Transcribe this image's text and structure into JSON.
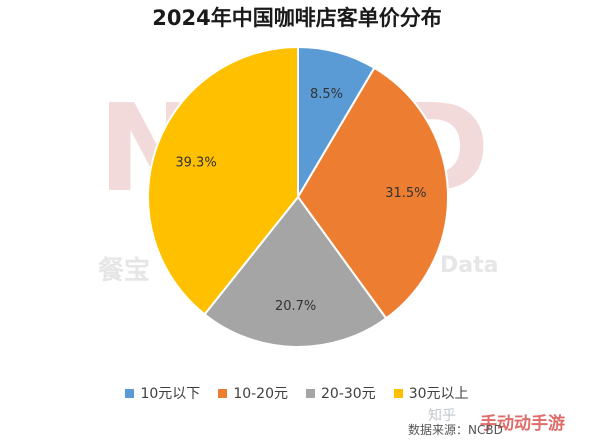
{
  "chart_data": {
    "type": "pie",
    "title": "2024年中国咖啡店客单价分布",
    "categories": [
      "10元以下",
      "10-20元",
      "20-30元",
      "30元以上"
    ],
    "values": [
      8.5,
      31.5,
      20.7,
      39.3
    ],
    "value_labels": [
      "8.5%",
      "31.5%",
      "20.7%",
      "39.3%"
    ],
    "colors": [
      "#5b9bd5",
      "#ed7d31",
      "#a5a5a5",
      "#ffc000"
    ],
    "legend_position": "bottom",
    "start_angle": "12 o'clock",
    "direction": "clockwise"
  },
  "watermarks": {
    "source": "数据来源：NCBD",
    "brand": "手动动手游",
    "zhihu": "知乎",
    "background_logo": "NCBD",
    "background_text_left": "餐宝",
    "background_text_right": "Data"
  }
}
